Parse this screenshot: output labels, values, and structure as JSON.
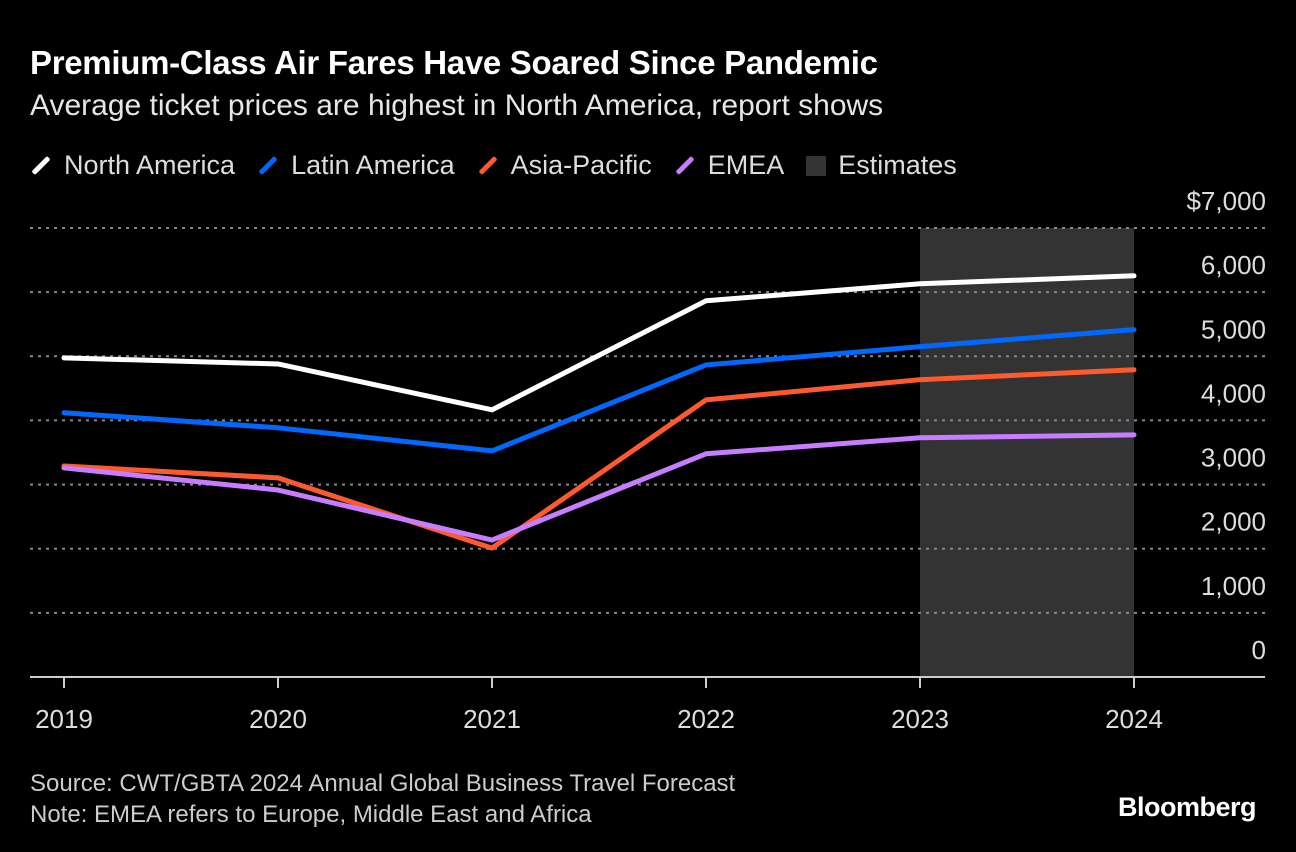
{
  "title": "Premium-Class Air Fares Have Soared Since Pandemic",
  "subtitle": "Average ticket prices are highest in North America, report shows",
  "legend": [
    {
      "label": "North America",
      "color": "#ffffff"
    },
    {
      "label": "Latin America",
      "color": "#0068ff"
    },
    {
      "label": "Asia-Pacific",
      "color": "#ff5a2d"
    },
    {
      "label": "EMEA",
      "color": "#c77dff"
    },
    {
      "label": "Estimates",
      "color": "#333333"
    }
  ],
  "chart_data": {
    "type": "line",
    "x": [
      "2019",
      "2020",
      "2021",
      "2022",
      "2023",
      "2024"
    ],
    "ylim": [
      0,
      7000
    ],
    "yticks": [
      "0",
      "1,000",
      "2,000",
      "3,000",
      "4,000",
      "5,000",
      "6,000",
      "$7,000"
    ],
    "ytick_values": [
      0,
      1000,
      2000,
      3000,
      4000,
      5000,
      6000,
      7000
    ],
    "grid": true,
    "legend_position": "top-left",
    "shaded_region": {
      "label": "Estimates",
      "from": "2023",
      "to": "2024",
      "color": "#333333"
    },
    "series": [
      {
        "name": "North America",
        "color": "#ffffff",
        "values": [
          4975,
          4880,
          4165,
          5865,
          6130,
          6255
        ]
      },
      {
        "name": "Latin America",
        "color": "#0068ff",
        "values": [
          4120,
          3885,
          3525,
          4865,
          5150,
          5415
        ]
      },
      {
        "name": "Asia-Pacific",
        "color": "#ff5a2d",
        "values": [
          3290,
          3105,
          2010,
          4320,
          4635,
          4790
        ]
      },
      {
        "name": "EMEA",
        "color": "#c77dff",
        "values": [
          3260,
          2915,
          2135,
          3480,
          3730,
          3775
        ]
      }
    ]
  },
  "footer": {
    "source": "Source: CWT/GBTA 2024 Annual Global Business Travel Forecast",
    "note": "Note: EMEA refers to Europe, Middle East and Africa"
  },
  "logo": "Bloomberg"
}
